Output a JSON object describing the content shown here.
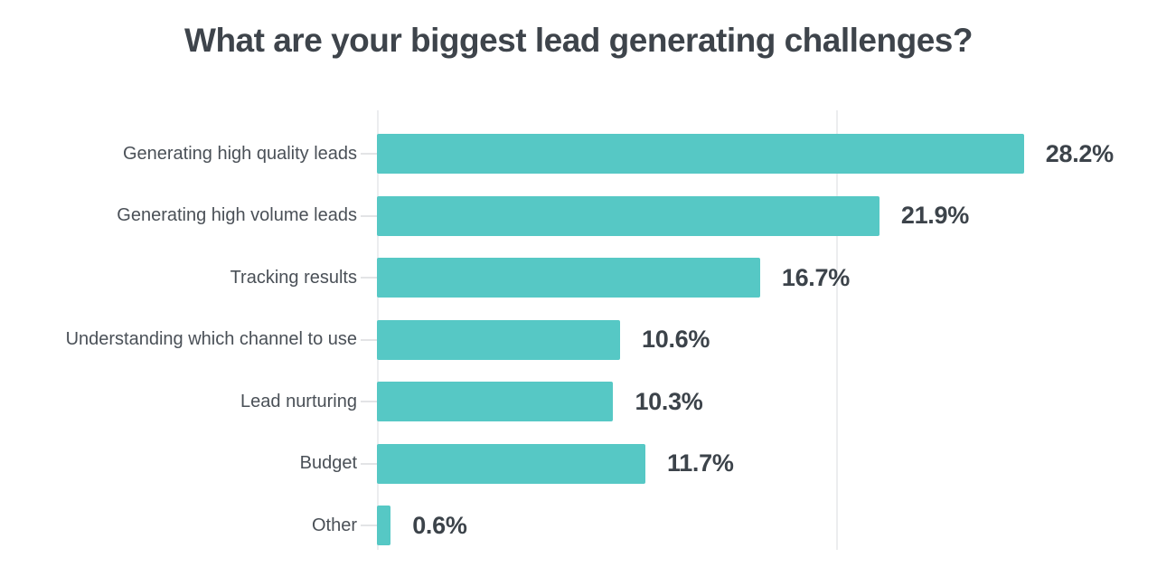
{
  "title": "What are your biggest lead generating challenges?",
  "chart_data": {
    "type": "bar",
    "orientation": "horizontal",
    "title": "What are your biggest lead generating challenges?",
    "categories": [
      "Generating high quality leads",
      "Generating high volume leads",
      "Tracking results",
      "Understanding which channel to use",
      "Lead nurturing",
      "Budget",
      "Other"
    ],
    "values": [
      28.2,
      21.9,
      16.7,
      10.6,
      10.3,
      11.7,
      0.6
    ],
    "value_labels": [
      "28.2%",
      "21.9%",
      "16.7%",
      "10.6%",
      "10.3%",
      "11.7%",
      "0.6%"
    ],
    "xlabel": "",
    "ylabel": "",
    "xlim": [
      0,
      34
    ],
    "grid": true,
    "gridline_positions_pct": [
      0,
      20
    ],
    "legend": "none",
    "bar_color": "#56C8C5",
    "title_color": "#3E444B",
    "label_color": "#4A5057",
    "value_color": "#3C434A",
    "gridline_color": "#ECEDEF",
    "tick_color": "#E3E4E6",
    "background_color": "#ffffff"
  }
}
